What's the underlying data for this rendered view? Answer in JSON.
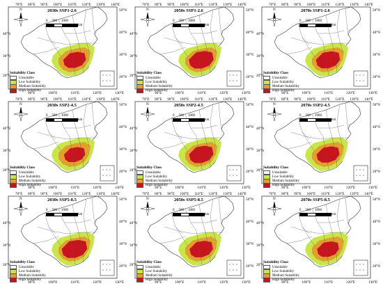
{
  "panels": [
    {
      "title": "2030s SSP1-2.6",
      "level": 0.6
    },
    {
      "title": "2050s SSP1-2.6",
      "level": 0.75
    },
    {
      "title": "2070s SSP1-2.6",
      "level": 0.7
    },
    {
      "title": "2030s SSP2-4.5",
      "level": 0.5
    },
    {
      "title": "2050s SSP2-4.5",
      "level": 0.72
    },
    {
      "title": "2070s SSP2-4.5",
      "level": 0.62
    },
    {
      "title": "2030s SSP5-8.5",
      "level": 0.8
    },
    {
      "title": "2050s SSP5-8.5",
      "level": 0.65
    },
    {
      "title": "2070s SSP5-8.5",
      "level": 0.55
    }
  ],
  "top_ticks": [
    "70°E",
    "80°E",
    "90°E",
    "100°E",
    "110°E",
    "120°E",
    "130°E",
    "140°E"
  ],
  "bottom_ticks": [
    "90°E",
    "100°E",
    "110°E",
    "120°E",
    "130°E"
  ],
  "right_lats": [
    "50°N",
    "40°N",
    "30°N",
    "20°N"
  ],
  "left_lats": [
    "40°N",
    "30°N",
    "20°N"
  ],
  "north_label": "N",
  "scale": {
    "values": [
      "0",
      "500",
      "1000"
    ],
    "unit": "km"
  },
  "legend": {
    "title": "Suitability Class",
    "classes": [
      {
        "label": "Unsuitable",
        "color": "#ffffff"
      },
      {
        "label": "Low Suitability",
        "color": "#c8e64b"
      },
      {
        "label": "Medium Suitability",
        "color": "#e0a030"
      },
      {
        "label": "High Suitability",
        "color": "#c8141e"
      }
    ]
  }
}
